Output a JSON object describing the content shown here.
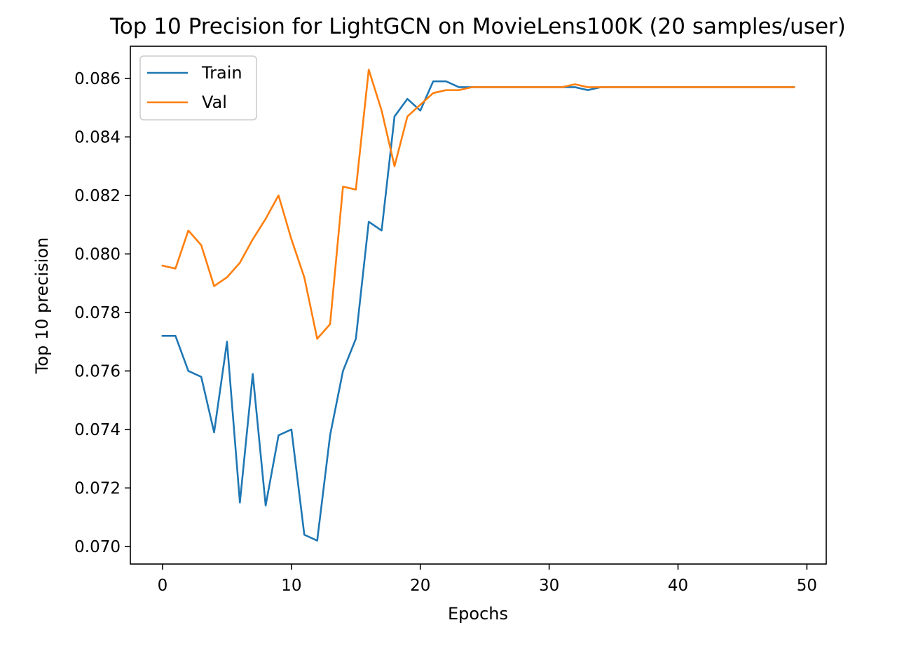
{
  "chart_data": {
    "type": "line",
    "title": "Top 10 Precision for LightGCN on MovieLens100K (20 samples/user)",
    "xlabel": "Epochs",
    "ylabel": "Top 10 precision",
    "xlim": [
      -2.5,
      51.5
    ],
    "ylim": [
      0.0694,
      0.0871
    ],
    "xticks": [
      0,
      10,
      20,
      30,
      40,
      50
    ],
    "yticks": [
      0.07,
      0.072,
      0.074,
      0.076,
      0.078,
      0.08,
      0.082,
      0.084,
      0.086
    ],
    "xtick_labels": [
      "0",
      "10",
      "20",
      "30",
      "40",
      "50"
    ],
    "ytick_labels": [
      "0.070",
      "0.072",
      "0.074",
      "0.076",
      "0.078",
      "0.080",
      "0.082",
      "0.084",
      "0.086"
    ],
    "grid": false,
    "legend_position": "top-left",
    "x": [
      0,
      1,
      2,
      3,
      4,
      5,
      6,
      7,
      8,
      9,
      10,
      11,
      12,
      13,
      14,
      15,
      16,
      17,
      18,
      19,
      20,
      21,
      22,
      23,
      24,
      25,
      26,
      27,
      28,
      29,
      30,
      31,
      32,
      33,
      34,
      35,
      36,
      37,
      38,
      39,
      40,
      41,
      42,
      43,
      44,
      45,
      46,
      47,
      48,
      49
    ],
    "series": [
      {
        "name": "Train",
        "color": "#1f77b4",
        "values": [
          0.0772,
          0.0772,
          0.076,
          0.0758,
          0.0739,
          0.077,
          0.0715,
          0.0759,
          0.0714,
          0.0738,
          0.074,
          0.0704,
          0.0702,
          0.0738,
          0.076,
          0.0771,
          0.0811,
          0.0808,
          0.0847,
          0.0853,
          0.0849,
          0.0859,
          0.0859,
          0.0857,
          0.0857,
          0.0857,
          0.0857,
          0.0857,
          0.0857,
          0.0857,
          0.0857,
          0.0857,
          0.0857,
          0.0856,
          0.0857,
          0.0857,
          0.0857,
          0.0857,
          0.0857,
          0.0857,
          0.0857,
          0.0857,
          0.0857,
          0.0857,
          0.0857,
          0.0857,
          0.0857,
          0.0857,
          0.0857,
          0.0857
        ]
      },
      {
        "name": "Val",
        "color": "#ff7f0e",
        "values": [
          0.0796,
          0.0795,
          0.0808,
          0.0803,
          0.0789,
          0.0792,
          0.0797,
          0.0805,
          0.0812,
          0.082,
          0.0805,
          0.0792,
          0.0771,
          0.0776,
          0.0823,
          0.0822,
          0.0863,
          0.0849,
          0.083,
          0.0847,
          0.0851,
          0.0855,
          0.0856,
          0.0856,
          0.0857,
          0.0857,
          0.0857,
          0.0857,
          0.0857,
          0.0857,
          0.0857,
          0.0857,
          0.0858,
          0.0857,
          0.0857,
          0.0857,
          0.0857,
          0.0857,
          0.0857,
          0.0857,
          0.0857,
          0.0857,
          0.0857,
          0.0857,
          0.0857,
          0.0857,
          0.0857,
          0.0857,
          0.0857,
          0.0857
        ]
      }
    ]
  }
}
